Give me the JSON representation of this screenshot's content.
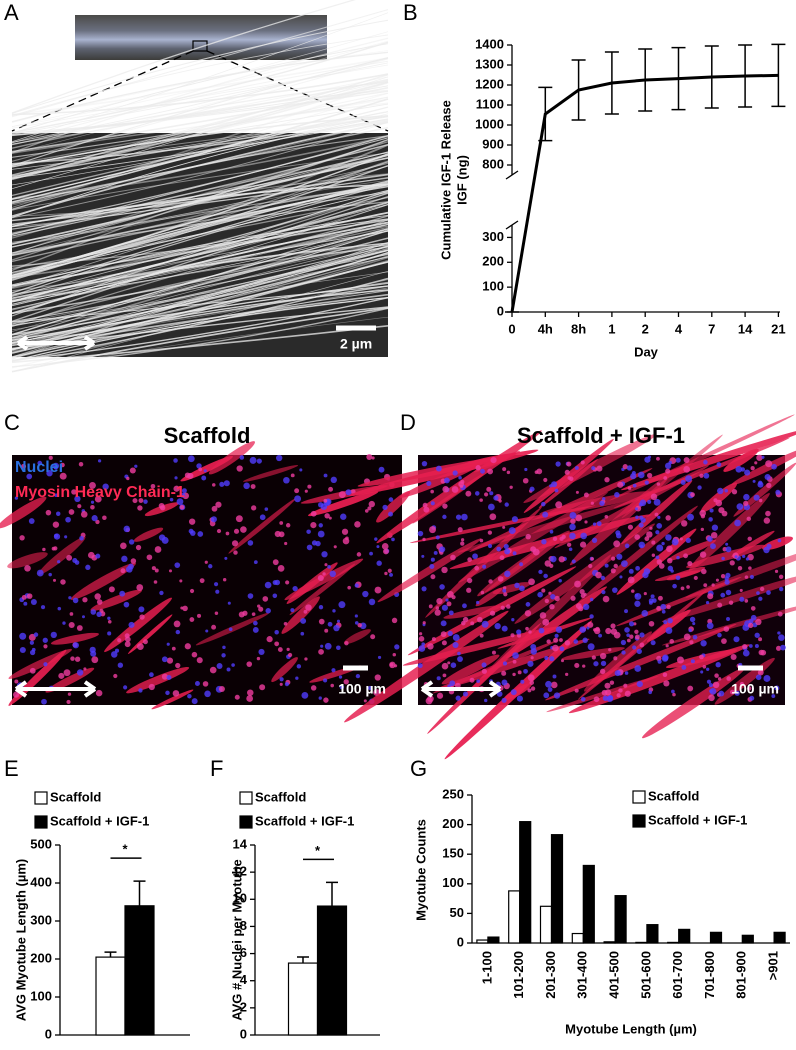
{
  "figure": {
    "panel_labels": [
      "A",
      "B",
      "C",
      "D",
      "E",
      "F",
      "G"
    ],
    "panel_a": {
      "scale_label": "2 µm"
    },
    "panel_c": {
      "title": "Scaffold",
      "legend": [
        "Nuclei",
        "Myosin Heavy Chain-1"
      ],
      "scale_label": "100 µm"
    },
    "panel_d": {
      "title": "Scaffold + IGF-1",
      "scale_label": "100 µm"
    }
  },
  "chart_data": [
    {
      "type": "line",
      "ylabel": [
        "Cumulative IGF-1 Release",
        "IGF (ng)"
      ],
      "xlabel": "Day",
      "categories": [
        "0",
        "4h",
        "8h",
        "1",
        "2",
        "4",
        "7",
        "14",
        "21"
      ],
      "values": [
        0,
        1055,
        1175,
        1210,
        1225,
        1232,
        1240,
        1245,
        1248
      ],
      "errors": [
        0,
        133,
        150,
        155,
        155,
        155,
        155,
        155,
        155
      ],
      "color": "#000000",
      "ylim": [
        [
          0,
          350
        ],
        [
          750,
          1400
        ]
      ],
      "yticks": [
        0,
        100,
        200,
        300,
        800,
        900,
        1000,
        1100,
        1200,
        1300,
        1400
      ]
    },
    {
      "type": "bar",
      "ylabel": "AVG Myotube Length (µm)",
      "annotation": "*",
      "series": [
        {
          "name": "Scaffold",
          "color": "#ffffff",
          "values": [
            205
          ],
          "errors": [
            13
          ]
        },
        {
          "name": "Scaffold + IGF-1",
          "color": "#000000",
          "values": [
            340
          ],
          "errors": [
            65
          ]
        }
      ],
      "ylim": [
        0,
        500
      ],
      "yticks": [
        0,
        100,
        200,
        300,
        400,
        500
      ]
    },
    {
      "type": "bar",
      "ylabel": "AVG # Nuclei per Myotube",
      "annotation": "*",
      "series": [
        {
          "name": "Scaffold",
          "color": "#ffffff",
          "values": [
            5.3
          ],
          "errors": [
            0.45
          ]
        },
        {
          "name": "Scaffold + IGF-1",
          "color": "#000000",
          "values": [
            9.5
          ],
          "errors": [
            1.75
          ]
        }
      ],
      "ylim": [
        0,
        14
      ],
      "yticks": [
        0,
        2,
        4,
        6,
        8,
        10,
        12,
        14
      ]
    },
    {
      "type": "bar",
      "ylabel": "Myotube Counts",
      "xlabel": "Myotube Length (µm)",
      "categories": [
        "1-100",
        "101-200",
        "201-300",
        "301-400",
        "401-500",
        "501-600",
        "601-700",
        "701-800",
        "801-900",
        ">901"
      ],
      "series": [
        {
          "name": "Scaffold",
          "color": "#ffffff",
          "values": [
            5,
            88,
            62,
            16,
            2,
            1,
            1,
            0,
            0,
            0
          ]
        },
        {
          "name": "Scaffold + IGF-1",
          "color": "#000000",
          "values": [
            10,
            205,
            183,
            131,
            80,
            31,
            23,
            18,
            13,
            18
          ]
        }
      ],
      "ylim": [
        0,
        250
      ],
      "yticks": [
        0,
        50,
        100,
        150,
        200,
        250
      ]
    }
  ]
}
